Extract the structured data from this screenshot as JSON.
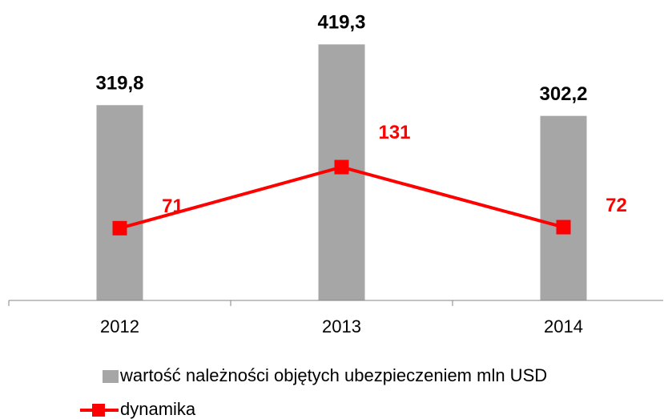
{
  "chart_data": {
    "type": "bar",
    "categories": [
      "2012",
      "2013",
      "2014"
    ],
    "series": [
      {
        "name": "wartość należności objętych ubezpieczeniem mln USD",
        "type": "bar",
        "color": "#a6a6a6",
        "values": [
          319.8,
          419.3,
          302.2
        ],
        "value_labels": [
          "319,8",
          "419,3",
          "302,2"
        ]
      },
      {
        "name": "dynamika",
        "type": "line",
        "axis": "y2",
        "color": "#ff0000",
        "values": [
          71,
          131,
          72
        ]
      }
    ],
    "ylim": [
      0,
      450
    ],
    "y2lim": [
      0,
      270
    ],
    "legend": "bottom"
  }
}
